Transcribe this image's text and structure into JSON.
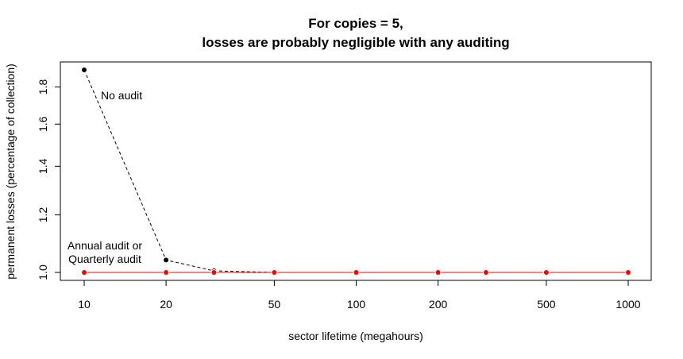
{
  "chart_data": {
    "type": "line",
    "title_line1": "For copies = 5,",
    "title_line2": "losses are probably negligible with any auditing",
    "xlabel": "sector lifetime (megahours)",
    "ylabel": "permanent losses (percentage of collection)",
    "x_scale": "log",
    "y_scale": "log",
    "xlim": [
      10,
      1000
    ],
    "ylim": [
      1.0,
      1.9
    ],
    "x_ticks": [
      10,
      20,
      50,
      100,
      200,
      500,
      1000
    ],
    "x_tick_labels": [
      "10",
      "20",
      "50",
      "100",
      "200",
      "500",
      "1000"
    ],
    "y_ticks": [
      1.0,
      1.2,
      1.4,
      1.6,
      1.8
    ],
    "y_tick_labels": [
      "1.0",
      "1.2",
      "1.4",
      "1.6",
      "1.8"
    ],
    "grid": false,
    "x": [
      10,
      20,
      30,
      50,
      100,
      200,
      300,
      500,
      1000
    ],
    "series": [
      {
        "name": "No audit",
        "color": "#000000",
        "line_style": "dashed",
        "values": [
          1.9,
          1.04,
          1.005,
          1.0,
          1.0,
          1.0,
          1.0,
          1.0,
          1.0
        ]
      },
      {
        "name": "Annual audit or",
        "color": "#ff0000",
        "line_style": "solid",
        "values": [
          1.0,
          1.0,
          1.0,
          1.0,
          1.0,
          1.0,
          1.0,
          1.0,
          1.0
        ]
      },
      {
        "name": "Quarterly audit",
        "color": "#0000ff",
        "line_style": "solid",
        "values": [
          1.0,
          1.0,
          1.0,
          1.0,
          1.0,
          1.0,
          1.0,
          1.0,
          1.0
        ]
      }
    ],
    "annotations": [
      {
        "text": "No audit",
        "color": "#000000"
      },
      {
        "text": "Annual audit or",
        "color": "#ff0000"
      },
      {
        "text": "Quarterly audit",
        "color": "#0000ff"
      }
    ]
  }
}
